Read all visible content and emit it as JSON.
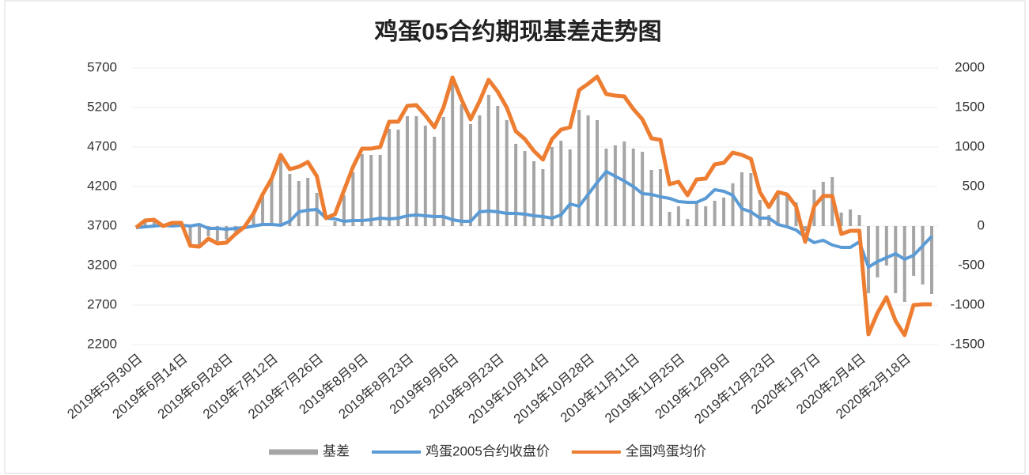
{
  "chart_data": {
    "type": "combo",
    "title": "鸡蛋05合约期现基差走势图",
    "x": [
      "2019年5月30日",
      null,
      null,
      null,
      null,
      "2019年6月14日",
      null,
      null,
      null,
      null,
      "2019年6月28日",
      null,
      null,
      null,
      null,
      "2019年7月12日",
      null,
      null,
      null,
      null,
      "2019年7月26日",
      null,
      null,
      null,
      null,
      "2019年8月9日",
      null,
      null,
      null,
      null,
      "2019年8月23日",
      null,
      null,
      null,
      null,
      "2019年9月6日",
      null,
      null,
      null,
      null,
      "2019年9月23日",
      null,
      null,
      null,
      null,
      "2019年10月14日",
      null,
      null,
      null,
      null,
      "2019年10月28日",
      null,
      null,
      null,
      null,
      "2019年11月11日",
      null,
      null,
      null,
      null,
      "2019年11月25日",
      null,
      null,
      null,
      null,
      "2019年12月9日",
      null,
      null,
      null,
      null,
      "2019年12月23日",
      null,
      null,
      null,
      null,
      "2020年1月7日",
      null,
      null,
      null,
      null,
      "2020年2月4日",
      null,
      null,
      null,
      null,
      "2020年2月18日",
      null,
      null,
      null
    ],
    "series": [
      {
        "name": "基差",
        "type": "bar",
        "axis": "y2",
        "color": "#a5a5a5",
        "values": [
          0,
          80,
          80,
          -10,
          40,
          30,
          -250,
          -280,
          -130,
          -190,
          -170,
          -70,
          10,
          160,
          380,
          580,
          890,
          660,
          570,
          610,
          420,
          0,
          60,
          390,
          680,
          910,
          900,
          900,
          1230,
          1220,
          1390,
          1390,
          1270,
          1130,
          1380,
          1800,
          1540,
          1290,
          1400,
          1660,
          1520,
          1340,
          1040,
          950,
          820,
          720,
          1000,
          1080,
          970,
          1470,
          1400,
          1340,
          980,
          1020,
          1070,
          980,
          940,
          710,
          720,
          180,
          250,
          90,
          290,
          250,
          320,
          360,
          540,
          680,
          670,
          330,
          140,
          410,
          410,
          300,
          -60,
          460,
          560,
          620,
          170,
          210,
          140,
          -850,
          -650,
          -500,
          -850,
          -960,
          -630,
          -740,
          -860
        ]
      },
      {
        "name": "鸡蛋2005合约收盘价",
        "type": "line",
        "axis": "y",
        "color": "#5b9bd5",
        "values": [
          3680,
          3690,
          3700,
          3710,
          3700,
          3710,
          3700,
          3720,
          3670,
          3670,
          3660,
          3670,
          3680,
          3700,
          3720,
          3720,
          3710,
          3760,
          3880,
          3900,
          3910,
          3800,
          3790,
          3760,
          3770,
          3770,
          3780,
          3800,
          3790,
          3800,
          3830,
          3840,
          3830,
          3820,
          3820,
          3780,
          3760,
          3760,
          3880,
          3890,
          3880,
          3860,
          3860,
          3850,
          3830,
          3820,
          3800,
          3840,
          3980,
          3950,
          4100,
          4250,
          4390,
          4330,
          4270,
          4200,
          4110,
          4100,
          4070,
          4050,
          4010,
          4000,
          4000,
          4050,
          4160,
          4140,
          4090,
          3920,
          3880,
          3800,
          3800,
          3720,
          3690,
          3650,
          3560,
          3490,
          3520,
          3460,
          3430,
          3430,
          3500,
          3180,
          3250,
          3300,
          3350,
          3280,
          3330,
          3450,
          3570
        ]
      },
      {
        "name": "全国鸡蛋均价",
        "type": "line",
        "axis": "y",
        "color": "#ed7d31",
        "values": [
          3680,
          3770,
          3780,
          3700,
          3740,
          3740,
          3450,
          3440,
          3540,
          3480,
          3490,
          3600,
          3690,
          3860,
          4100,
          4300,
          4600,
          4420,
          4450,
          4510,
          4330,
          3800,
          3850,
          4150,
          4450,
          4680,
          4680,
          4700,
          5020,
          5020,
          5220,
          5230,
          5100,
          4950,
          5200,
          5580,
          5300,
          5050,
          5280,
          5550,
          5400,
          5200,
          4900,
          4800,
          4650,
          4540,
          4800,
          4920,
          4950,
          5420,
          5500,
          5590,
          5370,
          5350,
          5340,
          5180,
          5050,
          4810,
          4790,
          4230,
          4260,
          4090,
          4290,
          4300,
          4480,
          4500,
          4630,
          4600,
          4550,
          4130,
          3940,
          4130,
          4100,
          3950,
          3500,
          3950,
          4080,
          4080,
          3600,
          3640,
          3640,
          2330,
          2600,
          2800,
          2500,
          2320,
          2700,
          2710,
          2710
        ]
      }
    ],
    "ylim": [
      2200,
      5700
    ],
    "yticks": [
      2200,
      2700,
      3200,
      3700,
      4200,
      4700,
      5200,
      5700
    ],
    "y2lim": [
      -1500,
      2000
    ],
    "y2ticks": [
      -1500,
      -1000,
      -500,
      0,
      500,
      1000,
      1500,
      2000
    ],
    "grid": true,
    "legend": "bottom"
  }
}
